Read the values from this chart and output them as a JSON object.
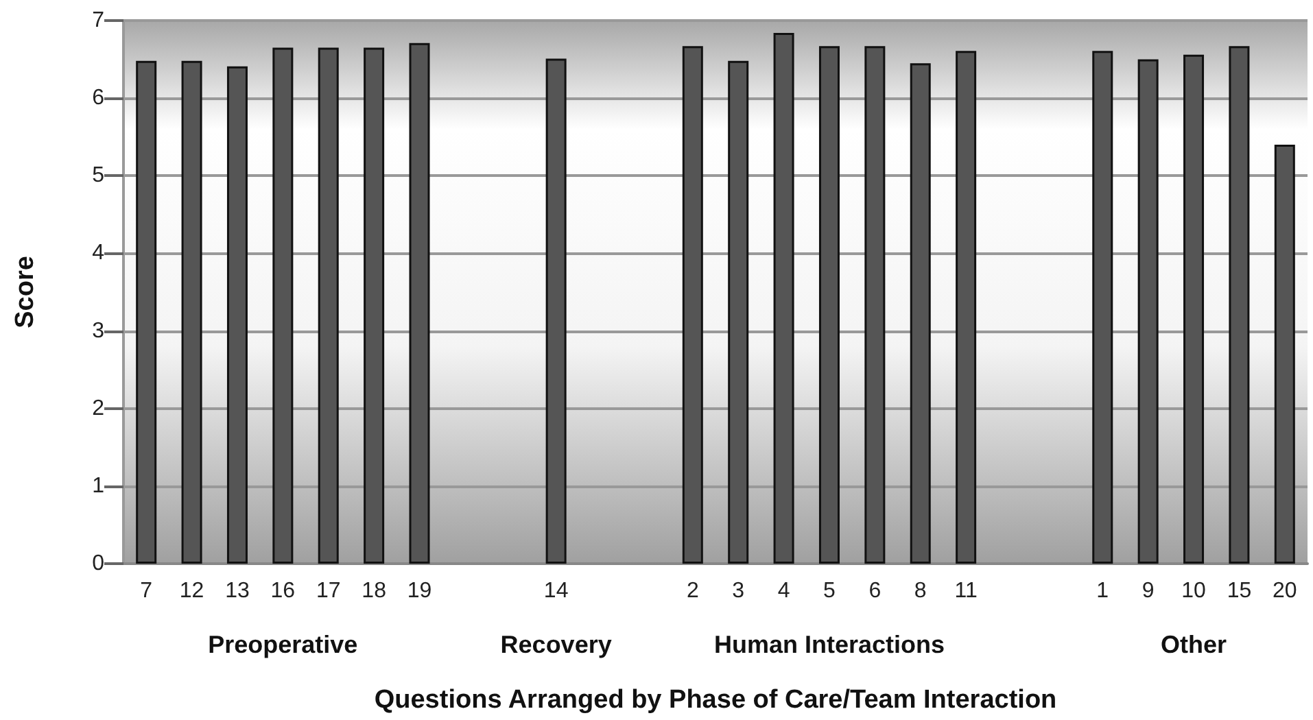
{
  "chart_data": {
    "type": "bar",
    "xlabel": "Questions Arranged by Phase of Care/Team Interaction",
    "ylabel": "Score",
    "categories": [
      "7",
      "12",
      "13",
      "16",
      "17",
      "18",
      "19",
      null,
      null,
      "14",
      null,
      null,
      "2",
      "3",
      "4",
      "5",
      "6",
      "8",
      "11",
      null,
      null,
      "1",
      "9",
      "10",
      "15",
      "20"
    ],
    "values": [
      6.48,
      6.48,
      6.41,
      6.65,
      6.65,
      6.65,
      6.71,
      null,
      null,
      6.51,
      null,
      null,
      6.67,
      6.48,
      6.84,
      6.67,
      6.67,
      6.45,
      6.61,
      null,
      null,
      6.61,
      6.5,
      6.56,
      6.67,
      5.4
    ],
    "color": "#555555",
    "ylim": [
      0,
      7
    ],
    "yticks": [
      0,
      1,
      2,
      3,
      4,
      5,
      6,
      7
    ],
    "grid": "y",
    "annotations": [
      "Preoperative",
      "Recovery",
      "Human Interactions",
      "Other"
    ]
  }
}
